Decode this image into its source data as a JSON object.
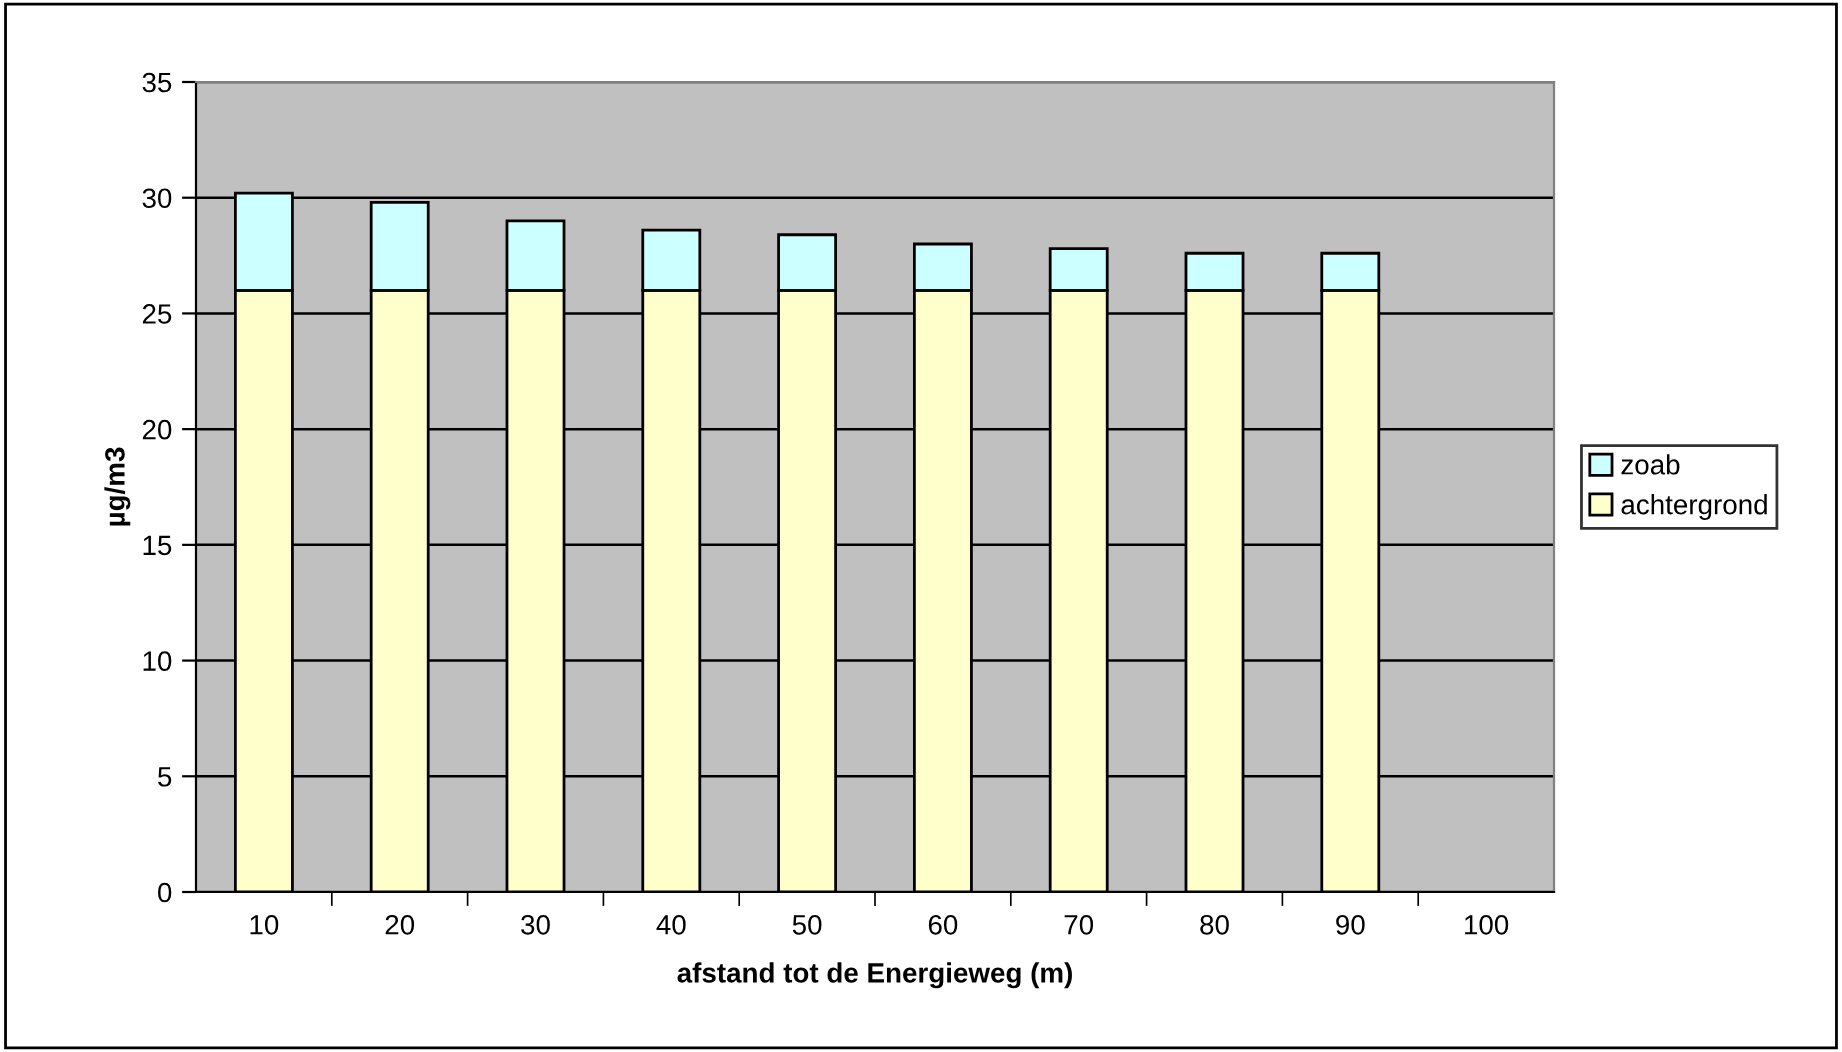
{
  "chart_data": {
    "type": "bar",
    "stacked": true,
    "xlabel": "afstand tot de Energieweg (m)",
    "ylabel": "µg/m3",
    "categories": [
      "10",
      "20",
      "30",
      "40",
      "50",
      "60",
      "70",
      "80",
      "90",
      "100"
    ],
    "series": [
      {
        "name": "achtergrond",
        "color": "#ffffcc",
        "values": [
          26,
          26,
          26,
          26,
          26,
          26,
          26,
          26,
          26,
          null
        ]
      },
      {
        "name": "zoab",
        "color": "#ccffff",
        "values": [
          4.2,
          3.8,
          3.0,
          2.6,
          2.4,
          2.0,
          1.8,
          1.6,
          1.6,
          null
        ]
      }
    ],
    "ylim": [
      0,
      35
    ],
    "yticks": [
      0,
      5,
      10,
      15,
      20,
      25,
      30,
      35
    ],
    "grid": "y",
    "legend": "right"
  }
}
